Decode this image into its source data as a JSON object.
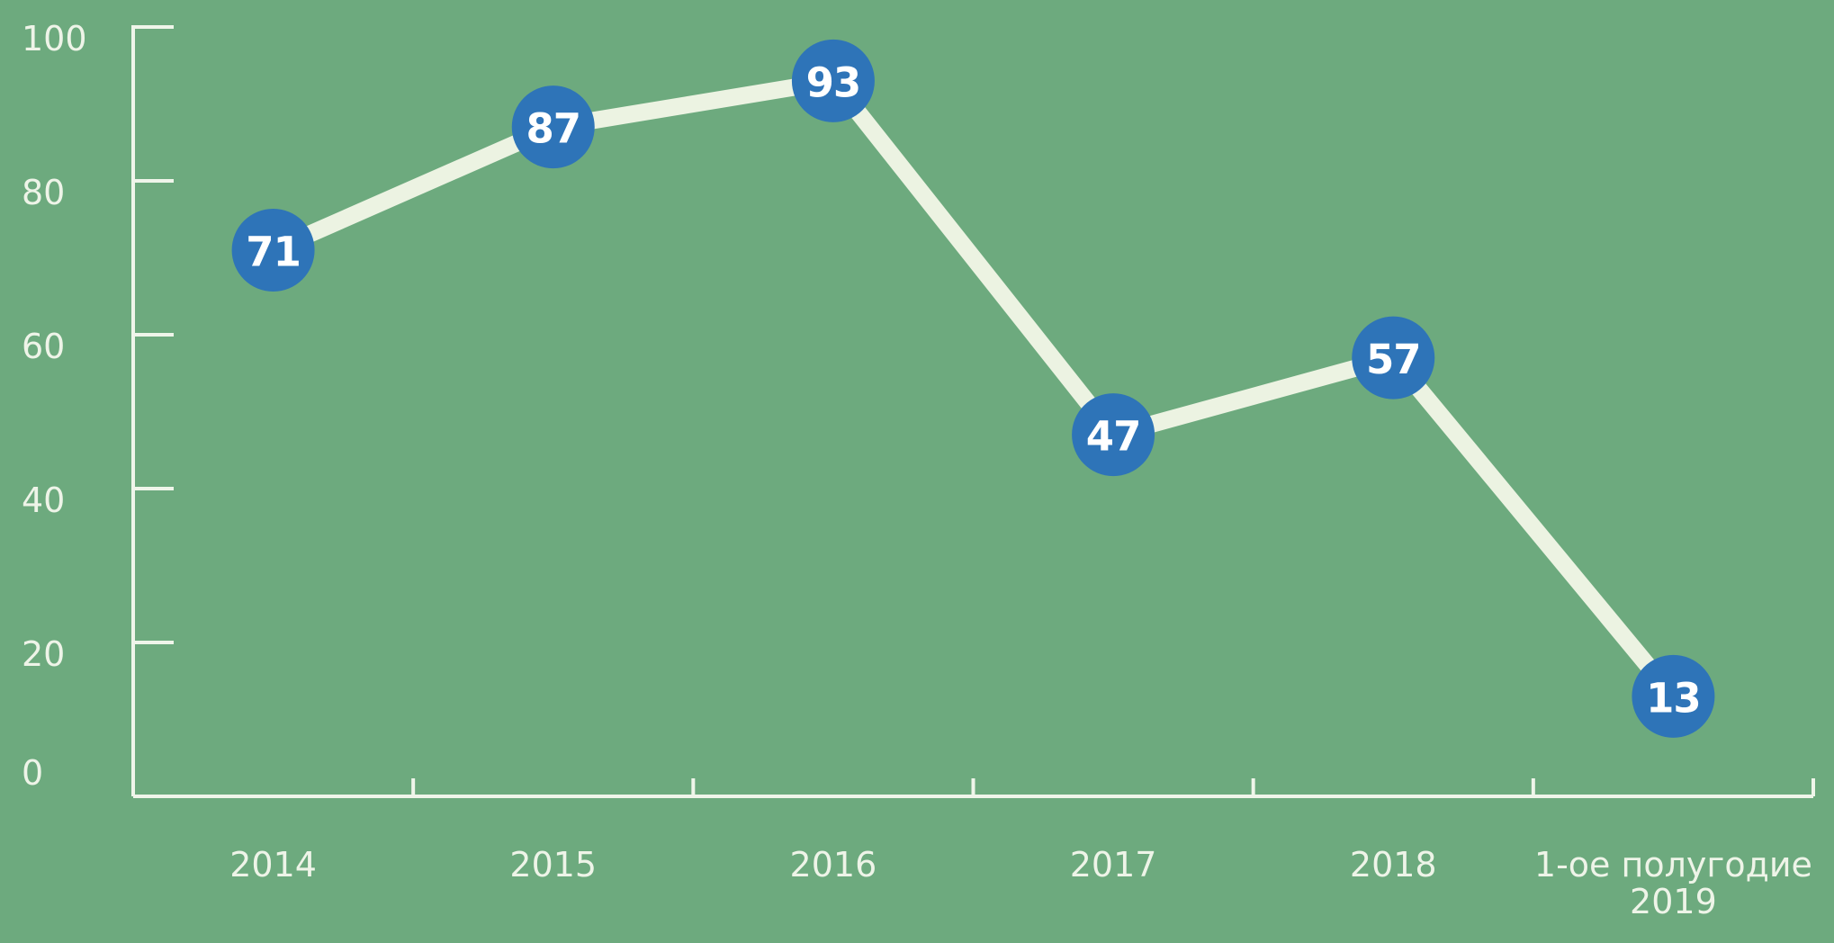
{
  "chart_data": {
    "type": "line",
    "title": "",
    "xlabel": "",
    "ylabel": "",
    "categories": [
      "2014",
      "2015",
      "2016",
      "2017",
      "2018",
      "1-ое полугодие\n2019"
    ],
    "series": [
      {
        "name": "values-by-year",
        "values": [
          71,
          87,
          93,
          47,
          57,
          13
        ]
      }
    ],
    "data_labels_shown": true,
    "ylim": [
      0,
      100
    ],
    "yticks": [
      0,
      20,
      40,
      60,
      80,
      100
    ],
    "ytick_labels": [
      "0",
      "20",
      "40",
      "60",
      "80",
      "100"
    ],
    "grid": false,
    "legend": null,
    "marker": "filled-circle-with-value-label",
    "colors": {
      "background": "#6DAA7E",
      "axis": "#EFF5EA",
      "axis_text": "#EEF4E8",
      "line": "#ECF3E2",
      "marker_fill": "#2E74B8",
      "marker_text": "#FFFFFF"
    }
  }
}
